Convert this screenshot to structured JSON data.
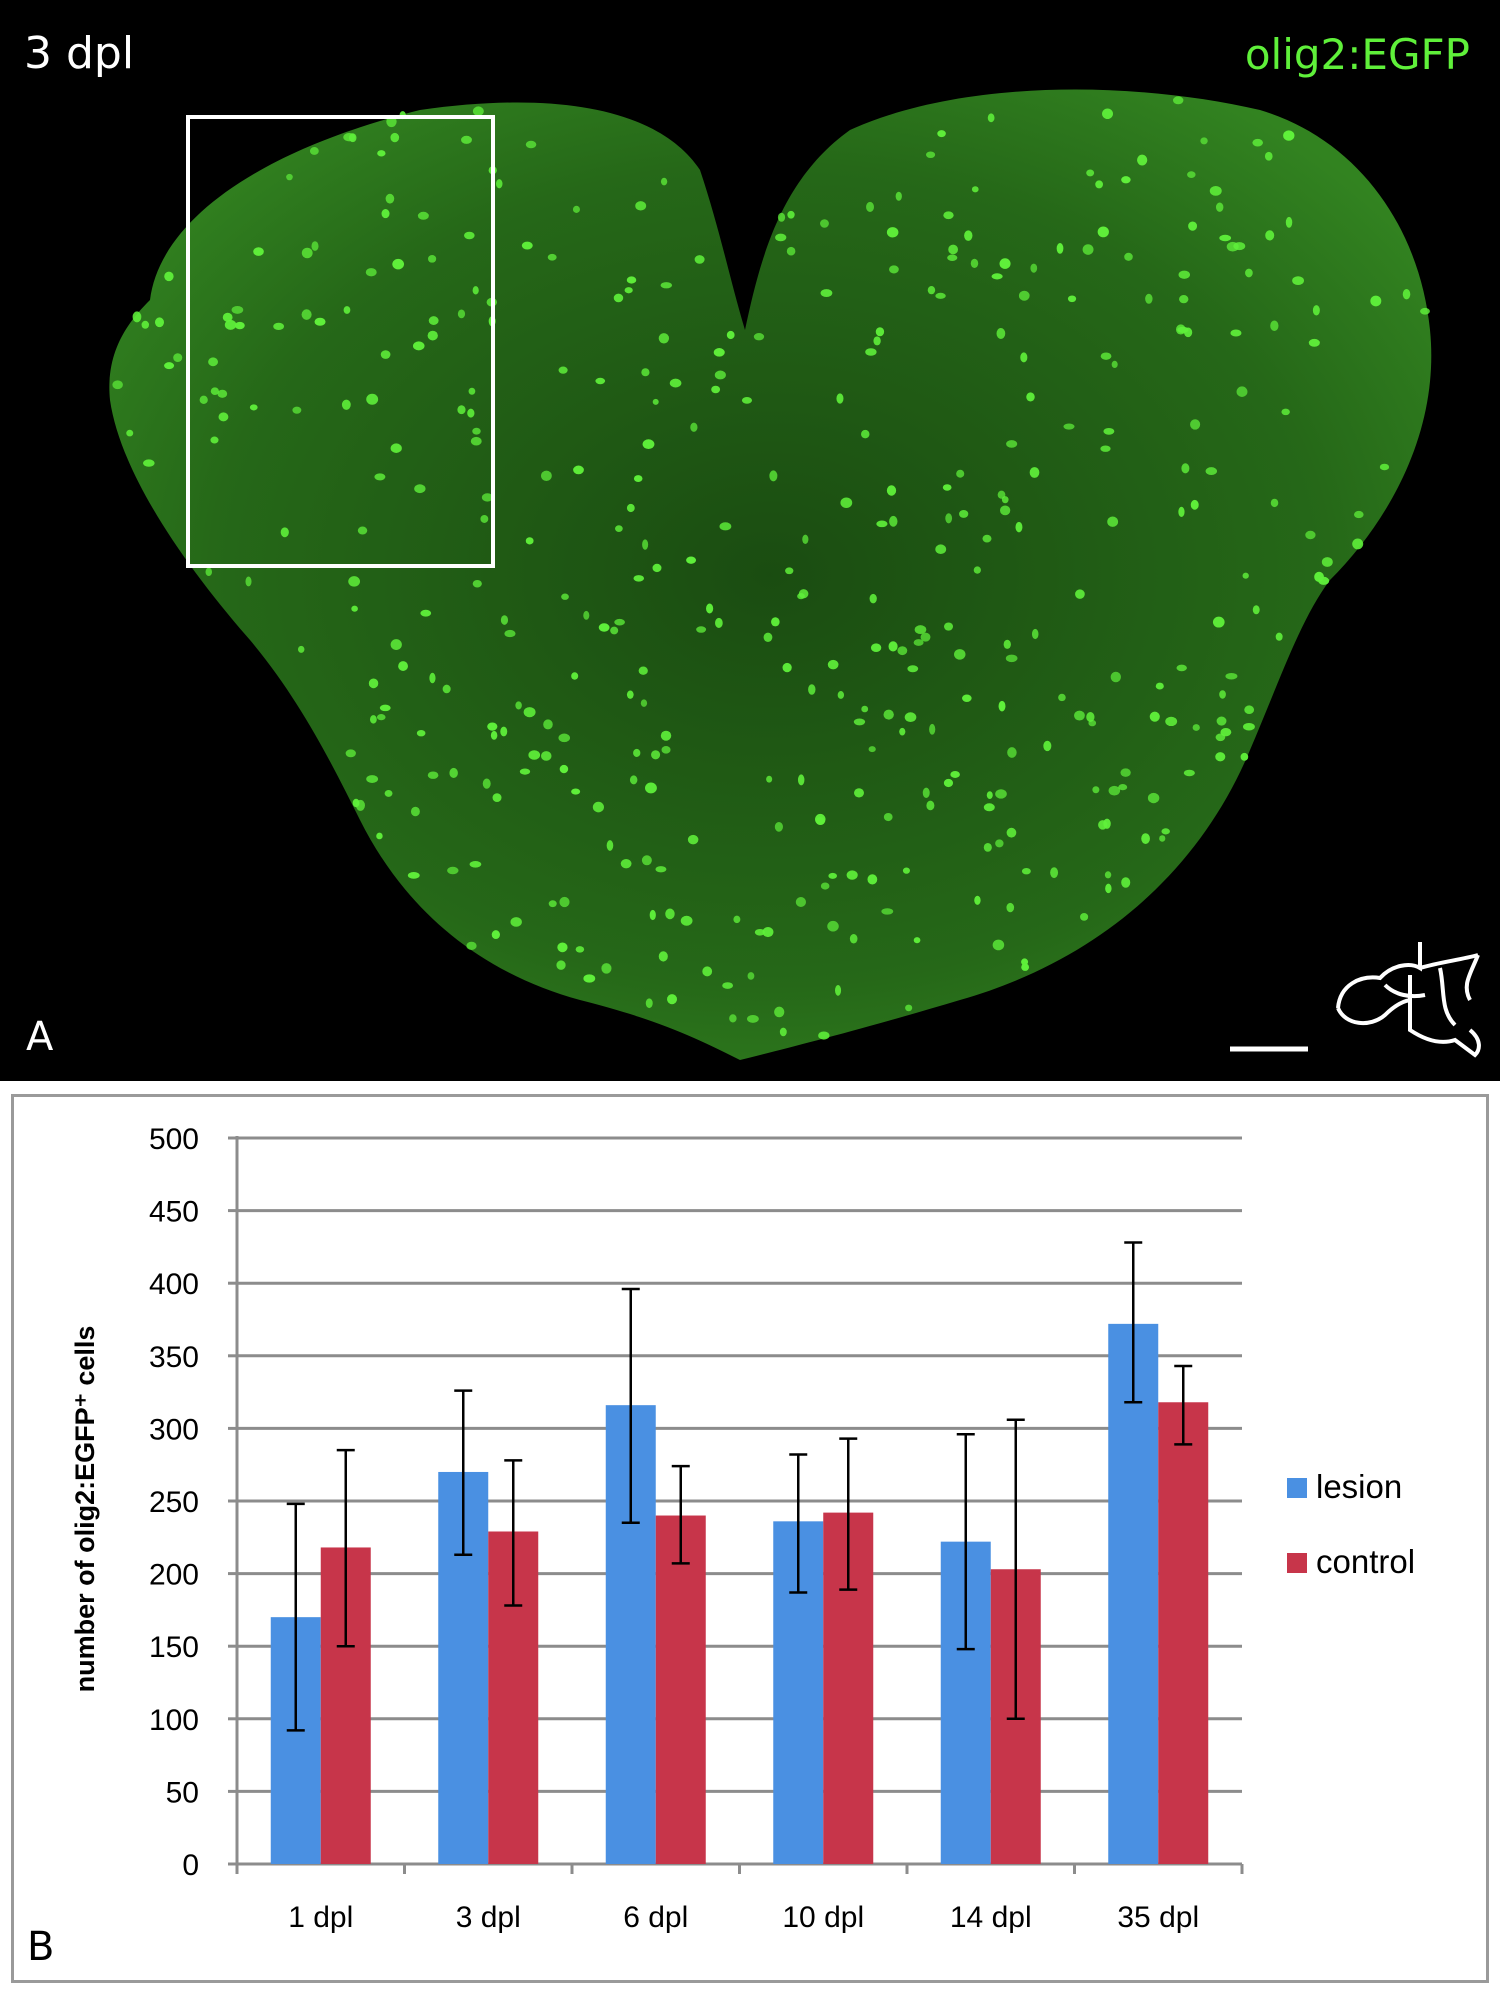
{
  "panel_a": {
    "timepoint_label": "3 dpl",
    "channel_label": "olig2:EGFP",
    "panel_letter": "A",
    "channel_color": "#5ff03a"
  },
  "panel_b": {
    "panel_letter": "B"
  },
  "chart_data": {
    "type": "bar",
    "categories": [
      "1 dpl",
      "3 dpl",
      "6 dpl",
      "10 dpl",
      "14 dpl",
      "35 dpl"
    ],
    "series": [
      {
        "name": "lesion",
        "color": "#4a90e2",
        "values": [
          170,
          270,
          316,
          236,
          222,
          372
        ],
        "error_low": [
          92,
          213,
          235,
          187,
          148,
          318
        ],
        "error_high": [
          248,
          326,
          396,
          282,
          296,
          428
        ]
      },
      {
        "name": "control",
        "color": "#c7354a",
        "values": [
          218,
          229,
          240,
          242,
          203,
          318
        ],
        "error_low": [
          150,
          178,
          207,
          189,
          100,
          289
        ],
        "error_high": [
          285,
          278,
          274,
          293,
          306,
          343
        ]
      }
    ],
    "xlabel": "",
    "ylabel": "number of olig2:EGFP⁺ cells",
    "ylim": [
      0,
      500
    ],
    "yticks": [
      0,
      50,
      100,
      150,
      200,
      250,
      300,
      350,
      400,
      450,
      500
    ],
    "grid": true,
    "legend_position": "right"
  }
}
